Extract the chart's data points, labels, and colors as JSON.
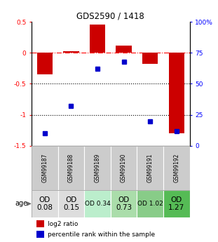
{
  "title": "GDS2590 / 1418",
  "samples": [
    "GSM99187",
    "GSM99188",
    "GSM99189",
    "GSM99190",
    "GSM99191",
    "GSM99192"
  ],
  "log2_ratio": [
    -0.35,
    0.02,
    0.46,
    0.12,
    -0.18,
    -1.3
  ],
  "percentile_rank": [
    10,
    32,
    62,
    68,
    20,
    12
  ],
  "bar_color": "#cc0000",
  "dot_color": "#0000cc",
  "ylim_left": [
    -1.5,
    0.5
  ],
  "ylim_right": [
    0,
    100
  ],
  "yticks_left": [
    0.5,
    0.0,
    -0.5,
    -1.0,
    -1.5
  ],
  "ytick_labels_left": [
    "0.5",
    "0",
    "-0.5",
    "-1",
    "-1.5"
  ],
  "yticks_right": [
    100,
    75,
    50,
    25,
    0
  ],
  "ytick_labels_right": [
    "100%",
    "75",
    "50",
    "25",
    "0"
  ],
  "dotted_lines": [
    -0.5,
    -1.0
  ],
  "age_labels": [
    "OD\n0.08",
    "OD\n0.15",
    "OD 0.34",
    "OD\n0.73",
    "OD 1.02",
    "OD\n1.27"
  ],
  "age_bg_colors": [
    "#dddddd",
    "#dddddd",
    "#bbeecc",
    "#aaddaa",
    "#88cc88",
    "#55bb55"
  ],
  "age_fontsize": [
    7.5,
    7.5,
    6.5,
    7.5,
    6.5,
    7.5
  ],
  "sample_bg_color": "#cccccc",
  "legend_labels": [
    "log2 ratio",
    "percentile rank within the sample"
  ],
  "background_color": "#ffffff"
}
